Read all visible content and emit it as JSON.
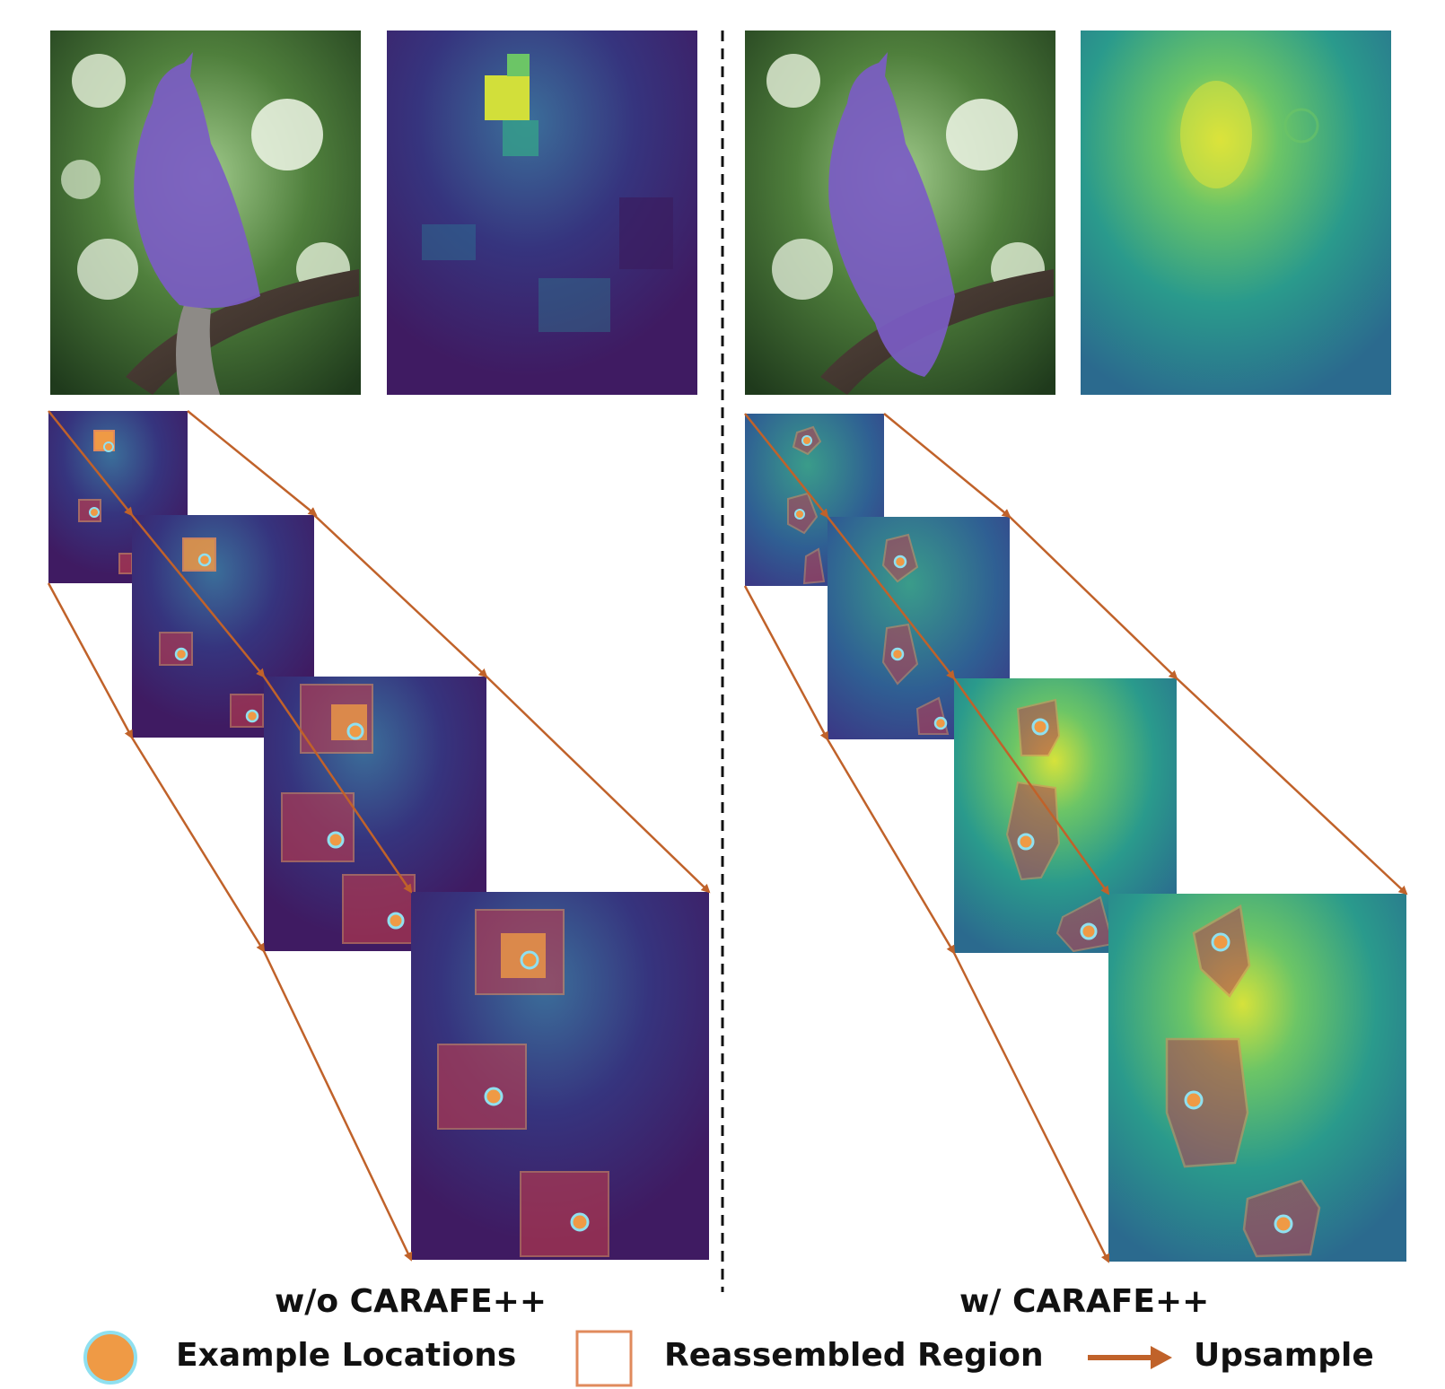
{
  "panels": {
    "left": {
      "caption": "w/o CARAFE++"
    },
    "right": {
      "caption": "w/ CARAFE++"
    }
  },
  "legend": {
    "example_locations": "Example Locations",
    "reassembled_region": "Reassembled Region",
    "upsample": "Upsample"
  },
  "colors": {
    "arrow": "#c0622a",
    "location_fill": "#ef9a45",
    "location_ring": "#8fe0f0",
    "region_stroke": "#e08a5c",
    "mask_purple": "#7b5cc4",
    "divider": "#111111"
  }
}
